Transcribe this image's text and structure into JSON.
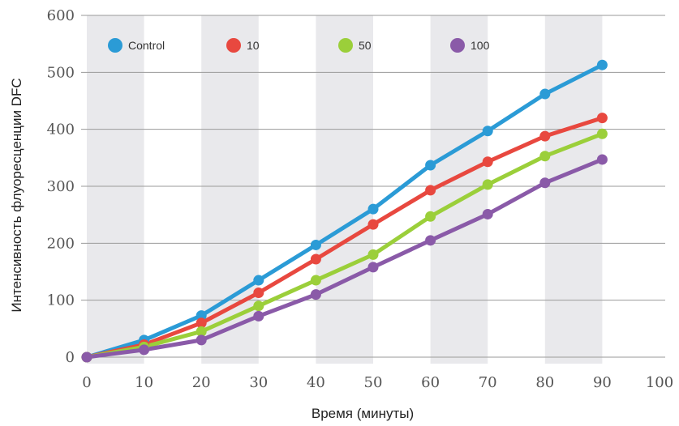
{
  "chart_data": {
    "type": "line",
    "title": "",
    "xlabel": "Время (минуты)",
    "ylabel": "Интенсивность флуоресценции DFC",
    "x": [
      0,
      10,
      20,
      30,
      40,
      50,
      60,
      70,
      80,
      90
    ],
    "x_ticks": [
      "0",
      "10",
      "20",
      "30",
      "40",
      "50",
      "60",
      "70",
      "80",
      "90",
      "100"
    ],
    "y_ticks": [
      "0",
      "100",
      "200",
      "300",
      "400",
      "500",
      "600"
    ],
    "xlim": [
      0,
      100
    ],
    "ylim": [
      0,
      600
    ],
    "grid": "horizontal gridlines, alternating vertical bands",
    "legend_position": "top-left",
    "series": [
      {
        "name": "Control",
        "color": "#2b9bd6",
        "values": [
          0,
          30,
          73,
          135,
          197,
          260,
          337,
          397,
          462,
          513
        ]
      },
      {
        "name": "10",
        "color": "#e8483f",
        "values": [
          0,
          22,
          60,
          113,
          172,
          233,
          293,
          343,
          388,
          420
        ]
      },
      {
        "name": "50",
        "color": "#9bcf3a",
        "values": [
          0,
          18,
          45,
          90,
          135,
          180,
          247,
          303,
          353,
          392
        ]
      },
      {
        "name": "100",
        "color": "#8a5aa8",
        "values": [
          0,
          13,
          30,
          72,
          110,
          158,
          205,
          251,
          306,
          347
        ]
      }
    ]
  }
}
